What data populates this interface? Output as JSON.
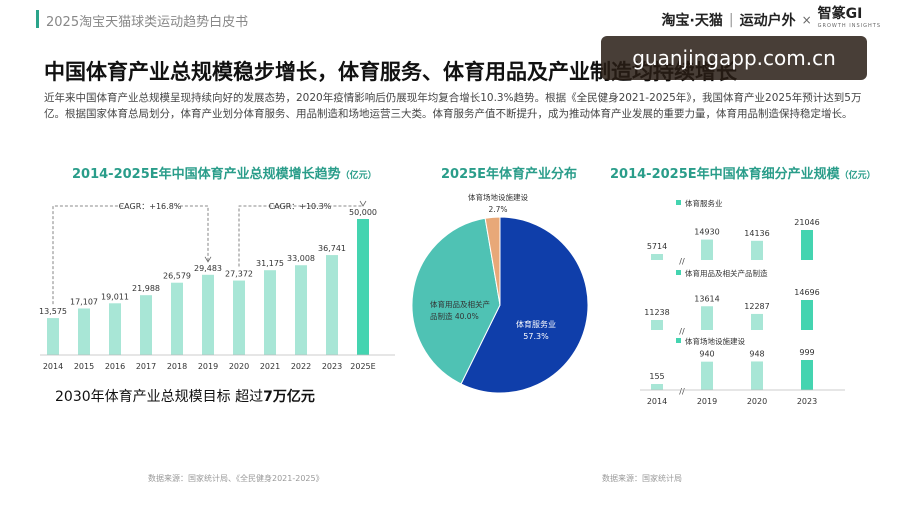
{
  "header": {
    "title": "2025淘宝天猫球类运动趋势白皮书",
    "brand_left": "淘宝·天猫",
    "brand_mid": "运动户外",
    "brand_x": "×",
    "brand_right": "智篆GI",
    "brand_right_sub": "GROWTH INSIGHTS"
  },
  "headline": "中国体育产业总规模稳步增长，体育服务、体育用品及产业制造均持续增长",
  "intro": "近年来中国体育产业总规模呈现持续向好的发展态势，2020年疫情影响后仍展现年均复合增长10.3%趋势。根据《全民健身2021-2025年》，我国体育产业2025年预计达到5万亿。根据国家体育总局划分，体育产业划分体育服务、用品制造和场地运营三大类。体育服务产值不断提升，成为推动体育产业发展的重要力量，体育用品制造保持稳定增长。",
  "watermark": "guanjingapp.com.cn",
  "panel1": {
    "title": "2014-2025E年中国体育产业总规模增长趋势",
    "unit": "（亿元）",
    "target_text": "2030年体育产业总规模目标 超过",
    "target_value": "7万亿元",
    "source": "数据来源：国家统计局、《全民健身2021-2025》"
  },
  "panel2": {
    "title": "2025E年体育产业分布",
    "source": "数据来源：国家统计局"
  },
  "panel3": {
    "title": "2014-2025E年中国体育细分产业规模",
    "unit": "（亿元）"
  },
  "colors": {
    "teal": "#2a9d8a",
    "bar_light": "#a8e6d6",
    "bar_strong": "#44d4b0",
    "pie_service": "#0f3eaa",
    "pie_goods": "#4fc2b4",
    "pie_venue": "#e8a878"
  },
  "chart_data": [
    {
      "type": "bar",
      "title": "2014-2025E年中国体育产业总规模增长趋势（亿元）",
      "categories": [
        "2014",
        "2015",
        "2016",
        "2017",
        "2018",
        "2019",
        "2020",
        "2021",
        "2022",
        "2023",
        "2025E"
      ],
      "values": [
        13575,
        17107,
        19011,
        21988,
        26579,
        29483,
        27372,
        31175,
        33008,
        36741,
        50000
      ],
      "value_labels": [
        "13,575",
        "17,107",
        "19,011",
        "21,988",
        "26,579",
        "29,483",
        "27,372",
        "31,175",
        "33,008",
        "36,741",
        "50,000"
      ],
      "annotations": [
        "CAGR：+16.8%",
        "CAGR：+10.3%"
      ],
      "ylim": [
        0,
        50000
      ],
      "grid": false
    },
    {
      "type": "pie",
      "title": "2025E年体育产业分布",
      "slices": [
        {
          "name": "体育服务业",
          "value": 57.3,
          "label": "57.3%"
        },
        {
          "name": "体育用品及相关产品制造",
          "value": 40.0,
          "label": "40.0%"
        },
        {
          "name": "体育场地设施建设",
          "value": 2.7,
          "label": "2.7%"
        }
      ]
    },
    {
      "type": "bar",
      "title": "2014-2025E年中国体育细分产业规模（亿元）",
      "categories": [
        "2014",
        "2019",
        "2020",
        "2023"
      ],
      "series": [
        {
          "name": "体育服务业",
          "values": [
            5714,
            14930,
            14136,
            21046
          ]
        },
        {
          "name": "体育用品及相关产品制造",
          "values": [
            11238,
            13614,
            12287,
            14696
          ]
        },
        {
          "name": "体育场地设施建设",
          "values": [
            155,
            940,
            948,
            999
          ]
        }
      ],
      "axis_break": "//",
      "grid": false
    }
  ]
}
